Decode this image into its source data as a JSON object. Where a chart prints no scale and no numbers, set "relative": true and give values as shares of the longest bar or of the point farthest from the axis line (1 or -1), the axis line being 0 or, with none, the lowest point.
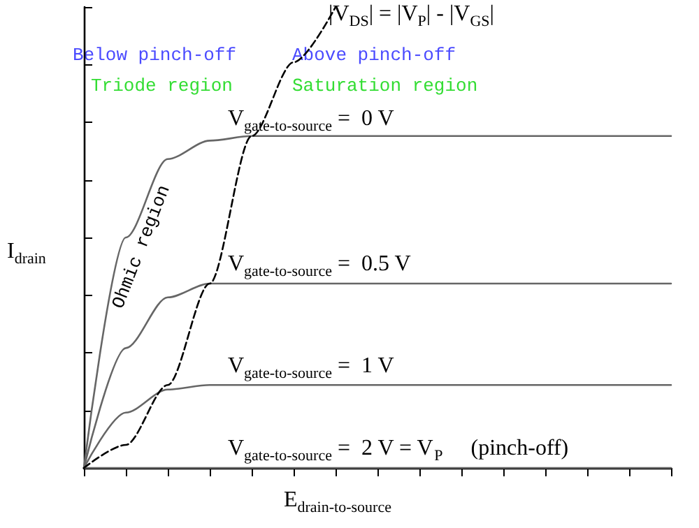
{
  "chart_data": {
    "type": "line",
    "relative": true,
    "grid": false,
    "legend": false,
    "marker": "none",
    "xlabel": "E$_{drain-to-source}$",
    "ylabel": "I$_{drain}$",
    "categories": [
      null,
      null,
      null,
      null,
      null,
      null,
      null,
      null,
      null,
      null,
      null,
      null,
      null,
      null,
      null
    ],
    "series": [
      {
        "name": "V$_{gate-to-source}$ =  0 V",
        "color": "#666666",
        "values": [
          0,
          0.5,
          0.67,
          0.71,
          0.72,
          0.72,
          0.72,
          0.72,
          0.72,
          0.72,
          0.72,
          0.72,
          0.72,
          0.72,
          0.72
        ]
      },
      {
        "name": "V$_{gate-to-source}$ =  0.5 V",
        "color": "#666666",
        "values": [
          0,
          0.26,
          0.37,
          0.4,
          0.4,
          0.4,
          0.4,
          0.4,
          0.4,
          0.4,
          0.4,
          0.4,
          0.4,
          0.4,
          0.4
        ]
      },
      {
        "name": "V$_{gate-to-source}$ =  1 V",
        "color": "#666666",
        "values": [
          0,
          0.12,
          0.17,
          0.18,
          0.18,
          0.18,
          0.18,
          0.18,
          0.18,
          0.18,
          0.18,
          0.18,
          0.18,
          0.18,
          0.18
        ]
      },
      {
        "name": "V$_{gate-to-source}$ =  2 V = V$_{P}$     (pinch-off)",
        "color": "#666666",
        "values": [
          0,
          0,
          0,
          0,
          0,
          0,
          0,
          0,
          0,
          0,
          0,
          0,
          0,
          0,
          0
        ]
      },
      {
        "name": "|V$_{DS}$| = |V$_{P}$| - |V$_{GS}$|",
        "color": "#000000",
        "line_style": "dashed",
        "values": [
          0,
          0.05,
          0.18,
          0.4,
          0.72,
          0.88,
          1,
          null,
          null,
          null,
          null,
          null,
          null,
          null,
          null
        ]
      }
    ],
    "annotations": [
      "Below pinch-off",
      "Above pinch-off",
      "Triode region",
      "Saturation region",
      "Ohmic region"
    ]
  }
}
